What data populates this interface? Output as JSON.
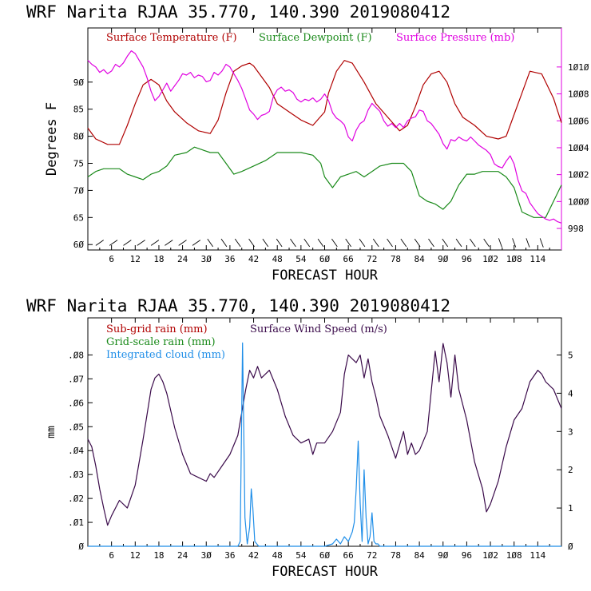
{
  "colors": {
    "temperature": "#b00000",
    "dewpoint": "#1a8a1a",
    "pressure": "#e000e0",
    "subgrid_rain": "#b00000",
    "gridscale_rain": "#1a8a1a",
    "cloud": "#1f8ee8",
    "wind": "#3a0a4a",
    "axis": "#000000"
  },
  "chart_data": [
    {
      "type": "line",
      "title": "WRF   Narita RJAA    35.770, 140.390   2019080412",
      "xlabel": "FORECAST HOUR",
      "ylabel": "Degrees F",
      "x_ticks": [
        "6",
        "12",
        "18",
        "24",
        "30",
        "36",
        "42",
        "48",
        "54",
        "60",
        "66",
        "72",
        "78",
        "84",
        "90",
        "96",
        "102",
        "108",
        "114"
      ],
      "xlim": [
        0,
        120
      ],
      "ylim": [
        59,
        100
      ],
      "y_ticks": [
        "60",
        "65",
        "70",
        "75",
        "80",
        "85",
        "90"
      ],
      "y2lim": [
        996.4,
        1012.9
      ],
      "y2_ticks": [
        "998",
        "1000",
        "1002",
        "1004",
        "1006",
        "1008",
        "1010"
      ],
      "legend": [
        "Surface Temperature (F)",
        "Surface Dewpoint (F)",
        "Surface Pressure (mb)"
      ],
      "series": [
        {
          "name": "Surface Temperature (F)",
          "axis": "left",
          "x": [
            0,
            2,
            5,
            8,
            10,
            12,
            14,
            16,
            18,
            20,
            22,
            25,
            28,
            31,
            33,
            35,
            37,
            39,
            41,
            42,
            44,
            46,
            48,
            51,
            54,
            57,
            60,
            61,
            63,
            65,
            67,
            70,
            73,
            76,
            79,
            81,
            83,
            85,
            87,
            89,
            91,
            93,
            95,
            98,
            101,
            104,
            106,
            108,
            110,
            112,
            115,
            118,
            120
          ],
          "y": [
            81.5,
            79.5,
            78.5,
            78.5,
            82,
            86,
            89.5,
            90.5,
            89.5,
            86.5,
            84.5,
            82.5,
            81,
            80.5,
            83,
            88,
            92,
            93,
            93.5,
            93,
            91,
            89,
            86,
            84.5,
            83,
            82,
            84.5,
            88,
            92,
            94,
            93.5,
            90,
            86,
            83.5,
            81,
            82,
            85.5,
            89.5,
            91.5,
            92,
            90,
            86,
            83.5,
            82,
            80,
            79.5,
            80,
            84,
            88,
            92,
            91.5,
            87,
            82.5
          ]
        },
        {
          "name": "Surface Dewpoint (F)",
          "axis": "left",
          "x": [
            0,
            2,
            4,
            8,
            10,
            12,
            14,
            16,
            18,
            20,
            22,
            25,
            27,
            29,
            31,
            33,
            35,
            37,
            39,
            42,
            45,
            48,
            51,
            54,
            57,
            59,
            60,
            62,
            64,
            66,
            68,
            70,
            72,
            74,
            77,
            80,
            82,
            84,
            86,
            88,
            90,
            92,
            94,
            96,
            98,
            100,
            102,
            104,
            106,
            108,
            110,
            113,
            116,
            118,
            120
          ],
          "y": [
            72.5,
            73.5,
            74,
            74,
            73,
            72.5,
            72,
            73,
            73.5,
            74.5,
            76.5,
            77,
            78,
            77.5,
            77,
            77,
            75,
            73,
            73.5,
            74.5,
            75.5,
            77,
            77,
            77,
            76.5,
            75,
            72.5,
            70.5,
            72.5,
            73,
            73.5,
            72.5,
            73.5,
            74.5,
            75,
            75,
            73.5,
            69,
            68,
            67.5,
            66.5,
            68,
            71,
            73,
            73,
            73.5,
            73.5,
            73.5,
            72.5,
            70.5,
            66,
            65,
            65,
            68,
            71
          ]
        },
        {
          "name": "Surface Pressure (mb)",
          "axis": "right",
          "x": [
            0,
            1,
            2,
            3,
            4,
            5,
            6,
            7,
            8,
            9,
            10,
            11,
            12,
            13,
            14,
            15,
            16,
            17,
            18,
            19,
            20,
            21,
            22,
            23,
            24,
            25,
            26,
            27,
            28,
            29,
            30,
            31,
            32,
            33,
            34,
            35,
            36,
            37,
            38,
            39,
            40,
            41,
            42,
            43,
            44,
            45,
            46,
            47,
            48,
            49,
            50,
            51,
            52,
            53,
            54,
            55,
            56,
            57,
            58,
            59,
            60,
            61,
            62,
            63,
            64,
            65,
            66,
            67,
            68,
            69,
            70,
            71,
            72,
            73,
            74,
            75,
            76,
            77,
            78,
            79,
            80,
            81,
            82,
            83,
            84,
            85,
            86,
            87,
            88,
            89,
            90,
            91,
            92,
            93,
            94,
            95,
            96,
            97,
            98,
            99,
            100,
            101,
            102,
            103,
            104,
            105,
            106,
            107,
            108,
            109,
            110,
            111,
            112,
            113,
            114,
            115,
            116,
            117,
            118,
            119,
            120
          ],
          "y": [
            1010.5,
            1010.2,
            1010.0,
            1009.6,
            1009.8,
            1009.5,
            1009.7,
            1010.2,
            1010.0,
            1010.3,
            1010.8,
            1011.2,
            1011.0,
            1010.5,
            1010.0,
            1009.2,
            1008.2,
            1007.5,
            1007.8,
            1008.3,
            1008.8,
            1008.2,
            1008.6,
            1009.0,
            1009.5,
            1009.4,
            1009.6,
            1009.2,
            1009.4,
            1009.3,
            1008.9,
            1009.0,
            1009.6,
            1009.4,
            1009.7,
            1010.2,
            1010.0,
            1009.5,
            1009.0,
            1008.4,
            1007.6,
            1006.8,
            1006.5,
            1006.1,
            1006.4,
            1006.5,
            1006.7,
            1007.8,
            1008.3,
            1008.5,
            1008.2,
            1008.3,
            1008.1,
            1007.6,
            1007.4,
            1007.6,
            1007.5,
            1007.7,
            1007.4,
            1007.6,
            1008.0,
            1007.5,
            1006.6,
            1006.2,
            1006.0,
            1005.7,
            1004.8,
            1004.5,
            1005.3,
            1005.8,
            1006.0,
            1006.8,
            1007.3,
            1007.0,
            1006.7,
            1006.0,
            1005.6,
            1005.8,
            1005.5,
            1005.8,
            1005.5,
            1006.0,
            1006.2,
            1006.3,
            1006.8,
            1006.7,
            1006.0,
            1005.8,
            1005.4,
            1005.0,
            1004.3,
            1003.9,
            1004.6,
            1004.5,
            1004.8,
            1004.6,
            1004.5,
            1004.8,
            1004.5,
            1004.2,
            1004.0,
            1003.8,
            1003.5,
            1002.8,
            1002.6,
            1002.5,
            1003.0,
            1003.4,
            1002.8,
            1001.6,
            1000.8,
            1000.6,
            999.9,
            999.5,
            999.1,
            998.9,
            998.7,
            998.6,
            998.7,
            998.5,
            998.4
          ]
        }
      ],
      "wind_barbs_row": true
    },
    {
      "type": "line",
      "title": "WRF   Narita RJAA    35.770, 140.390   2019080412",
      "xlabel": "FORECAST HOUR",
      "ylabel": "mm",
      "x_ticks": [
        "6",
        "12",
        "18",
        "24",
        "30",
        "36",
        "42",
        "48",
        "54",
        "60",
        "66",
        "72",
        "78",
        "84",
        "90",
        "96",
        "102",
        "108",
        "114"
      ],
      "xlim": [
        0,
        120
      ],
      "ylim": [
        0,
        0.0955
      ],
      "y_ticks": [
        ".01",
        ".02",
        ".03",
        ".04",
        ".05",
        ".06",
        ".07",
        ".08"
      ],
      "y_zero_label": "0",
      "y2lim": [
        0,
        5.97
      ],
      "y2_ticks": [
        "0",
        "1",
        "2",
        "3",
        "4",
        "5"
      ],
      "legend": [
        "Sub-grid rain (mm)",
        "Surface Wind Speed (m/s)",
        "Grid-scale rain (mm)",
        "Integrated cloud (mm)"
      ],
      "series": [
        {
          "name": "Surface Wind Speed (m/s)",
          "axis": "right",
          "x": [
            0,
            1,
            2,
            3,
            4,
            5,
            6,
            8,
            10,
            12,
            14,
            16,
            17,
            18,
            19,
            20,
            22,
            24,
            26,
            28,
            30,
            31,
            32,
            34,
            36,
            38,
            40,
            41,
            42,
            43,
            44,
            46,
            48,
            50,
            52,
            54,
            56,
            57,
            58,
            60,
            62,
            64,
            65,
            66,
            67,
            68,
            69,
            70,
            71,
            72,
            73,
            74,
            76,
            78,
            80,
            81,
            82,
            83,
            84,
            86,
            88,
            89,
            90,
            91,
            92,
            93,
            94,
            96,
            98,
            100,
            101,
            102,
            104,
            106,
            108,
            110,
            112,
            114,
            115,
            116,
            118,
            120
          ],
          "y": [
            2.8,
            2.6,
            2.1,
            1.5,
            1.0,
            0.55,
            0.8,
            1.2,
            1.0,
            1.6,
            2.8,
            4.1,
            4.4,
            4.5,
            4.3,
            4.0,
            3.1,
            2.4,
            1.9,
            1.8,
            1.7,
            1.9,
            1.8,
            2.1,
            2.4,
            2.9,
            4.1,
            4.6,
            4.4,
            4.7,
            4.4,
            4.6,
            4.1,
            3.4,
            2.9,
            2.7,
            2.8,
            2.4,
            2.7,
            2.7,
            3.0,
            3.5,
            4.5,
            5.0,
            4.9,
            4.8,
            5.0,
            4.4,
            4.9,
            4.3,
            3.9,
            3.4,
            2.9,
            2.3,
            3.0,
            2.4,
            2.7,
            2.4,
            2.5,
            3.0,
            5.1,
            4.3,
            5.3,
            4.8,
            3.9,
            5.0,
            4.1,
            3.3,
            2.2,
            1.5,
            0.9,
            1.1,
            1.7,
            2.6,
            3.3,
            3.6,
            4.3,
            4.6,
            4.5,
            4.3,
            4.1,
            3.6
          ]
        },
        {
          "name": "Integrated cloud (mm)",
          "axis": "left",
          "x": [
            0,
            38,
            38.6,
            39.2,
            39.8,
            40.4,
            41,
            41.4,
            41.8,
            42.3,
            42.8,
            43.3,
            44,
            60,
            62,
            63,
            64,
            65,
            66,
            67,
            67.5,
            68,
            68.5,
            69,
            69.5,
            70,
            70.5,
            71,
            71.5,
            72,
            72.5,
            73,
            73.5,
            74,
            80,
            120
          ],
          "y": [
            0,
            0,
            0.002,
            0.085,
            0.012,
            0.001,
            0.008,
            0.024,
            0.016,
            0.002,
            0.001,
            0,
            0,
            0,
            0.001,
            0.003,
            0.001,
            0.004,
            0.002,
            0.006,
            0.01,
            0.024,
            0.044,
            0.018,
            0.002,
            0.032,
            0.012,
            0.001,
            0.004,
            0.014,
            0.002,
            0.001,
            0.001,
            0,
            0,
            0
          ]
        }
      ]
    }
  ]
}
